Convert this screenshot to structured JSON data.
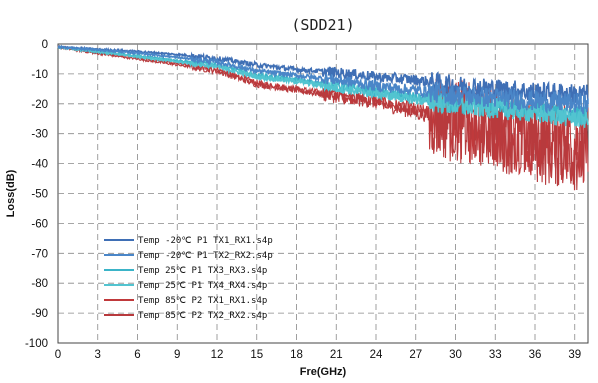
{
  "chart_data": {
    "type": "line",
    "title": "(SDD21)",
    "xlabel": "Fre(GHz)",
    "ylabel": "Loss(dB)",
    "xlim": [
      0,
      40
    ],
    "ylim": [
      -100,
      0
    ],
    "xticks": [
      "0",
      "3",
      "6",
      "9",
      "12",
      "15",
      "18",
      "21",
      "24",
      "27",
      "30",
      "33",
      "36",
      "39"
    ],
    "yticks": [
      "0",
      "-10",
      "-20",
      "-30",
      "-40",
      "-50",
      "-60",
      "-70",
      "-80",
      "-90",
      "-100"
    ],
    "grid": true,
    "legend_position": "bottom-left",
    "series": [
      {
        "name": "Temp -20℃ P1 TX1_RX1.s4p",
        "color": "#3f6fb5",
        "x": [
          0,
          3,
          6,
          9,
          12,
          15,
          18,
          21,
          24,
          27,
          30,
          33,
          36,
          40
        ],
        "y": [
          -1,
          -1.8,
          -2.5,
          -3.5,
          -4.8,
          -7,
          -8.5,
          -9.5,
          -11,
          -12,
          -14,
          -15,
          -16,
          -17
        ]
      },
      {
        "name": "Temp -20℃ P1 TX2_RX2.s4p",
        "color": "#4a86c8",
        "x": [
          0,
          3,
          6,
          9,
          12,
          15,
          18,
          21,
          24,
          27,
          30,
          33,
          36,
          40
        ],
        "y": [
          -1,
          -2,
          -3,
          -4.5,
          -6,
          -9,
          -10.5,
          -12,
          -14,
          -15.5,
          -17,
          -18,
          -19,
          -20
        ]
      },
      {
        "name": "Temp 25℃ P1 TX3_RX3.s4p",
        "color": "#3bb4c8",
        "x": [
          0,
          3,
          6,
          9,
          12,
          15,
          18,
          21,
          24,
          27,
          30,
          33,
          36,
          40
        ],
        "y": [
          -1,
          -2.5,
          -4,
          -5.5,
          -7,
          -10.5,
          -12,
          -14,
          -16,
          -18,
          -20,
          -21,
          -22,
          -24
        ]
      },
      {
        "name": "Temp 25℃ P1 TX4_RX4.s4p",
        "color": "#52c4d0",
        "x": [
          0,
          3,
          6,
          9,
          12,
          15,
          18,
          21,
          24,
          27,
          30,
          33,
          36,
          40
        ],
        "y": [
          -1,
          -2.7,
          -4.2,
          -6,
          -7.5,
          -11,
          -12.5,
          -14.5,
          -16.5,
          -18.5,
          -20.5,
          -21.5,
          -23,
          -25
        ]
      },
      {
        "name": "Temp 85℃ P2 TX1_RX1.s4p",
        "color": "#c0393b",
        "x": [
          0,
          3,
          6,
          9,
          12,
          15,
          18,
          21,
          24,
          27,
          30,
          33,
          36,
          40
        ],
        "y": [
          -1,
          -3,
          -4.5,
          -6.5,
          -8.5,
          -13,
          -15,
          -17,
          -19,
          -22,
          -25,
          -27,
          -31,
          -33
        ]
      },
      {
        "name": "Temp 85℃ P2 TX2_RX2.s4p",
        "color": "#b83a3d",
        "x": [
          0,
          3,
          6,
          9,
          12,
          15,
          18,
          21,
          24,
          27,
          30,
          33,
          36,
          40
        ],
        "y": [
          -1,
          -3.2,
          -5,
          -7,
          -9,
          -13.5,
          -15.5,
          -17.5,
          -19.5,
          -23,
          -26,
          -28,
          -33,
          -36
        ]
      }
    ]
  }
}
